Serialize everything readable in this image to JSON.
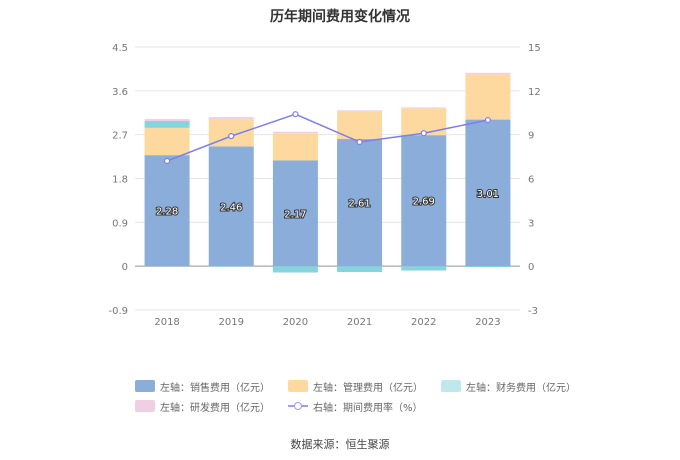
{
  "chart_data": {
    "type": "bar",
    "title": "历年期间费用变化情况",
    "categories": [
      "2018",
      "2019",
      "2020",
      "2021",
      "2022",
      "2023"
    ],
    "left_axis": {
      "ticks": [
        "4.5",
        "3.6",
        "2.7",
        "1.8",
        "0.9",
        "0",
        "-0.9"
      ],
      "ylim": [
        -0.9,
        4.5
      ]
    },
    "right_axis": {
      "ticks": [
        "15",
        "12",
        "9",
        "6",
        "3",
        "0",
        "-3"
      ],
      "ylim": [
        -3,
        15
      ]
    },
    "series": [
      {
        "name": "左轴：销售费用（亿元）",
        "color": "#8badd9",
        "values": [
          2.28,
          2.46,
          2.17,
          2.61,
          2.69,
          3.01
        ],
        "labels": [
          "2.28",
          "2.46",
          "2.17",
          "2.61",
          "2.69",
          "3.01"
        ]
      },
      {
        "name": "左轴：管理费用（亿元）",
        "color": "#fdd9a0",
        "values": [
          0.56,
          0.56,
          0.56,
          0.56,
          0.55,
          0.93
        ]
      },
      {
        "name": "左轴：财务费用（亿元）",
        "color": "#87d4dc",
        "values": [
          0.14,
          -0.01,
          -0.13,
          -0.12,
          -0.09,
          -0.02
        ]
      },
      {
        "name": "左轴：研发费用（亿元）",
        "color": "#f0cfe3",
        "values": [
          0.04,
          0.04,
          0.03,
          0.03,
          0.02,
          0.03
        ]
      },
      {
        "name": "右轴：期间费用率（%）",
        "color": "#7b7fe8",
        "axis": "right",
        "type": "line",
        "values": [
          7.2,
          8.9,
          10.4,
          8.5,
          9.1,
          10.0
        ]
      }
    ],
    "source": "数据来源：恒生聚源"
  }
}
